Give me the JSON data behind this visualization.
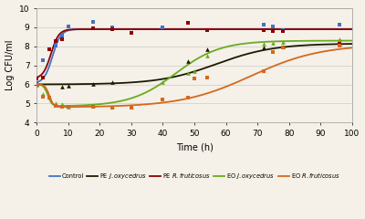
{
  "xlabel": "Time (h)",
  "ylabel": "Log CFU/ml",
  "xlim": [
    0,
    100
  ],
  "ylim": [
    4.0,
    10.0
  ],
  "xticks": [
    0,
    10,
    20,
    30,
    40,
    50,
    60,
    70,
    80,
    90,
    100
  ],
  "yticks": [
    4.0,
    5.0,
    6.0,
    7.0,
    8.0,
    9.0,
    10.0
  ],
  "control_color": "#4472C4",
  "pe_jox_color": "#1a1a00",
  "pe_rfru_color": "#8B0000",
  "eo_jox_color": "#6AAB20",
  "eo_rfru_color": "#D2691E",
  "background_color": "#F5F0E8",
  "grid_color": "#CCCCCC",
  "control_scatter": [
    [
      0,
      6.05
    ],
    [
      2,
      7.25
    ],
    [
      4,
      7.85
    ],
    [
      6,
      8.05
    ],
    [
      8,
      8.55
    ],
    [
      10,
      9.05
    ],
    [
      18,
      9.3
    ],
    [
      24,
      9.0
    ],
    [
      40,
      9.0
    ],
    [
      48,
      9.25
    ],
    [
      54,
      8.85
    ],
    [
      72,
      9.15
    ],
    [
      75,
      9.05
    ],
    [
      78,
      8.85
    ],
    [
      96,
      9.15
    ]
  ],
  "pe_jox_scatter": [
    [
      0,
      6.05
    ],
    [
      8,
      5.9
    ],
    [
      10,
      5.95
    ],
    [
      18,
      6.05
    ],
    [
      24,
      6.1
    ],
    [
      48,
      7.2
    ],
    [
      54,
      7.85
    ],
    [
      72,
      7.95
    ],
    [
      78,
      8.0
    ],
    [
      96,
      8.15
    ]
  ],
  "pe_rfru_scatter": [
    [
      0,
      6.3
    ],
    [
      2,
      6.35
    ],
    [
      4,
      7.85
    ],
    [
      6,
      8.3
    ],
    [
      8,
      8.35
    ],
    [
      18,
      8.95
    ],
    [
      24,
      8.9
    ],
    [
      30,
      8.7
    ],
    [
      48,
      9.25
    ],
    [
      54,
      8.85
    ],
    [
      72,
      8.85
    ],
    [
      75,
      8.8
    ],
    [
      78,
      8.8
    ],
    [
      96,
      8.15
    ]
  ],
  "eo_jox_scatter": [
    [
      0,
      6.0
    ],
    [
      2,
      5.5
    ],
    [
      4,
      5.35
    ],
    [
      6,
      5.0
    ],
    [
      8,
      4.95
    ],
    [
      10,
      4.85
    ],
    [
      18,
      4.9
    ],
    [
      24,
      4.85
    ],
    [
      30,
      4.85
    ],
    [
      40,
      6.1
    ],
    [
      48,
      6.6
    ],
    [
      50,
      6.7
    ],
    [
      54,
      7.5
    ],
    [
      72,
      8.15
    ],
    [
      75,
      8.2
    ],
    [
      78,
      8.25
    ],
    [
      96,
      8.35
    ]
  ],
  "eo_rfru_scatter": [
    [
      0,
      6.0
    ],
    [
      2,
      5.35
    ],
    [
      4,
      5.3
    ],
    [
      6,
      4.9
    ],
    [
      8,
      4.85
    ],
    [
      10,
      4.85
    ],
    [
      18,
      4.85
    ],
    [
      24,
      4.8
    ],
    [
      30,
      4.8
    ],
    [
      40,
      5.2
    ],
    [
      48,
      5.3
    ],
    [
      50,
      6.3
    ],
    [
      54,
      6.35
    ],
    [
      72,
      6.7
    ],
    [
      75,
      7.7
    ],
    [
      78,
      7.95
    ],
    [
      96,
      8.05
    ]
  ],
  "curve_control": {
    "y0": 6.05,
    "L": 8.9,
    "k": 0.75,
    "t0": 5.0
  },
  "curve_pe_jox": {
    "y0": 6.0,
    "L": 8.15,
    "k": 0.11,
    "t0": 57.0
  },
  "curve_pe_rfru": {
    "y0": 6.3,
    "L": 8.9,
    "k": 0.8,
    "t0": 4.5
  },
  "curve_eo_jox_fall": {
    "y0": 6.0,
    "L": 4.85,
    "k": 1.5,
    "t0": 3.5
  },
  "curve_eo_jox_rise": {
    "L": 8.3,
    "k": 0.14,
    "t0": 44.0
  },
  "curve_eo_rfru_fall": {
    "y0": 6.0,
    "L": 4.8,
    "k": 1.5,
    "t0": 4.0
  },
  "curve_eo_rfru_rise": {
    "L": 8.1,
    "k": 0.09,
    "t0": 68.0
  }
}
